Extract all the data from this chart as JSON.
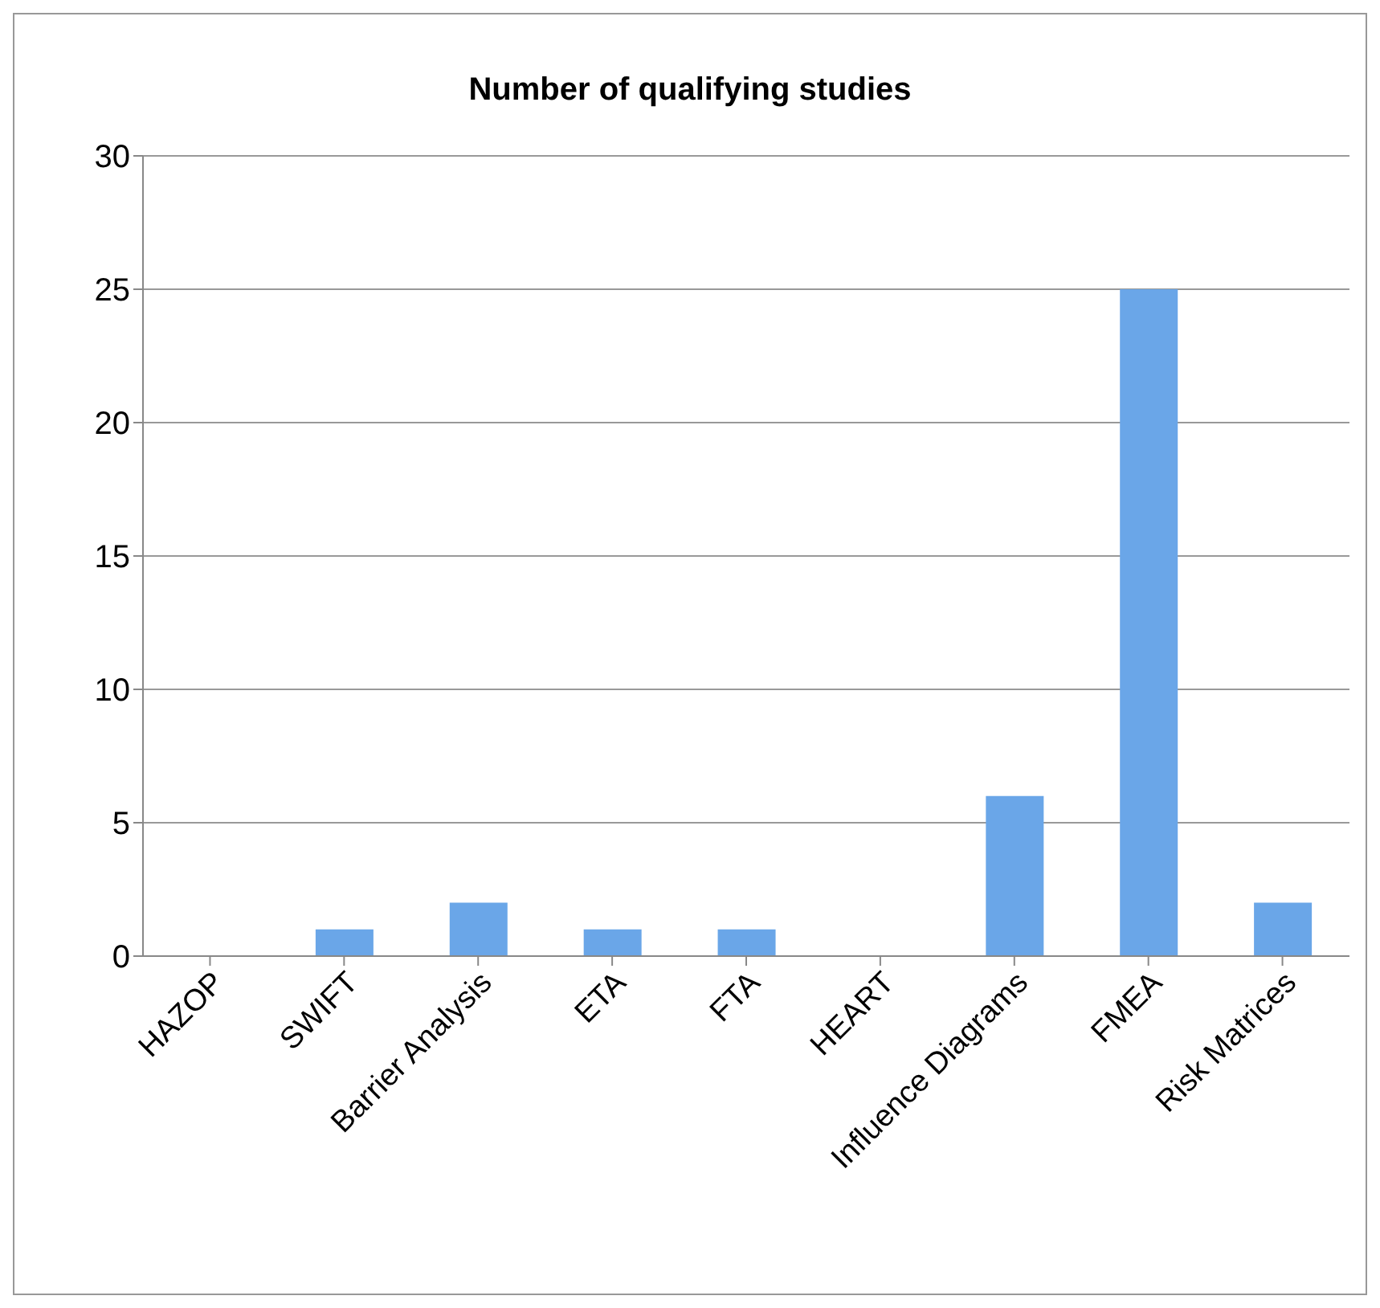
{
  "chart_data": {
    "type": "bar",
    "title": "Number of qualifying studies",
    "categories": [
      "HAZOP",
      "SWIFT",
      "Barrier Analysis",
      "ETA",
      "FTA",
      "HEART",
      "Influence Diagrams",
      "FMEA",
      "Risk Matrices"
    ],
    "values": [
      0,
      1,
      2,
      1,
      1,
      0,
      6,
      25,
      2
    ],
    "color": "#6aa6e8",
    "ylim": [
      0,
      30
    ],
    "yticks": [
      0,
      5,
      10,
      15,
      20,
      25,
      30
    ],
    "grid": "y"
  }
}
